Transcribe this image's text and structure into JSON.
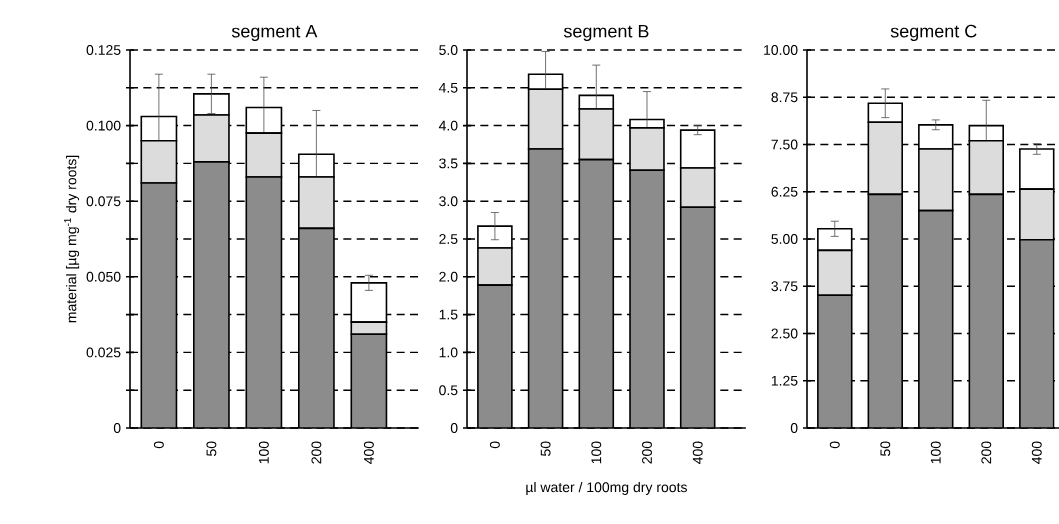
{
  "chart_data": [
    {
      "type": "bar",
      "stacked": true,
      "title": "segment A",
      "ylabel": "material [µg mg$^{-1}$ dry roots]",
      "categories": [
        "0",
        "50",
        "100",
        "200",
        "400"
      ],
      "series": [
        {
          "color": "#8c8c8c",
          "values": [
            0.081,
            0.088,
            0.083,
            0.066,
            0.031
          ]
        },
        {
          "color": "#dcdcdc",
          "values": [
            0.014,
            0.0155,
            0.0145,
            0.017,
            0.004
          ]
        },
        {
          "color": "#ffffff",
          "values": [
            0.008,
            0.007,
            0.0085,
            0.0075,
            0.013
          ],
          "errors": [
            0.014,
            0.0065,
            0.01,
            0.0145,
            0.0025
          ]
        }
      ],
      "ylim": [
        0,
        0.125
      ],
      "yticks": [
        0,
        {
          "value": 0.0125,
          "label": null
        },
        0.025,
        {
          "value": 0.0375,
          "label": null
        },
        {
          "value": 0.05,
          "label": "0.050"
        },
        {
          "value": 0.0625,
          "label": null
        },
        0.075,
        {
          "value": 0.0875,
          "label": null
        },
        {
          "value": 0.1,
          "label": "0.100"
        },
        {
          "value": 0.1125,
          "label": null
        },
        0.125
      ],
      "grid": "y"
    },
    {
      "type": "bar",
      "stacked": true,
      "title": "segment B",
      "xlabel": "µl water / 100mg dry roots",
      "categories": [
        "0",
        "50",
        "100",
        "200",
        "400"
      ],
      "series": [
        {
          "color": "#8c8c8c",
          "values": [
            1.89,
            3.69,
            3.55,
            3.41,
            2.92
          ]
        },
        {
          "color": "#dcdcdc",
          "values": [
            0.49,
            0.79,
            0.67,
            0.56,
            0.52
          ]
        },
        {
          "color": "#ffffff",
          "values": [
            0.29,
            0.2,
            0.18,
            0.11,
            0.5
          ],
          "errors": [
            0.18,
            0.3,
            0.4,
            0.37,
            0.06
          ]
        }
      ],
      "ylim": [
        0,
        5
      ],
      "yticks": [
        0,
        0.5,
        {
          "value": 1,
          "label": "1.0"
        },
        1.5,
        {
          "value": 2,
          "label": "2.0"
        },
        2.5,
        {
          "value": 3,
          "label": "3.0"
        },
        3.5,
        {
          "value": 4,
          "label": "4.0"
        },
        4.5,
        {
          "value": 5,
          "label": "5.0"
        }
      ],
      "grid": "y"
    },
    {
      "type": "bar",
      "stacked": true,
      "title": "segment C",
      "categories": [
        "0",
        "50",
        "100",
        "200",
        "400"
      ],
      "series": [
        {
          "color": "#8c8c8c",
          "values": [
            3.51,
            6.18,
            5.75,
            6.18,
            4.98
          ]
        },
        {
          "color": "#dcdcdc",
          "values": [
            1.19,
            1.91,
            1.63,
            1.42,
            1.34
          ]
        },
        {
          "color": "#ffffff",
          "values": [
            0.57,
            0.5,
            0.64,
            0.4,
            1.06
          ],
          "errors": [
            0.2,
            0.38,
            0.13,
            0.67,
            0.14
          ]
        }
      ],
      "ylim": [
        0,
        10
      ],
      "yticks": [
        0,
        1.25,
        {
          "value": 2.5,
          "label": "2.50"
        },
        3.75,
        {
          "value": 5,
          "label": "5.00"
        },
        6.25,
        {
          "value": 7.5,
          "label": "7.50"
        },
        8.75,
        {
          "value": 10,
          "label": "10.00"
        }
      ],
      "grid": "y"
    }
  ]
}
